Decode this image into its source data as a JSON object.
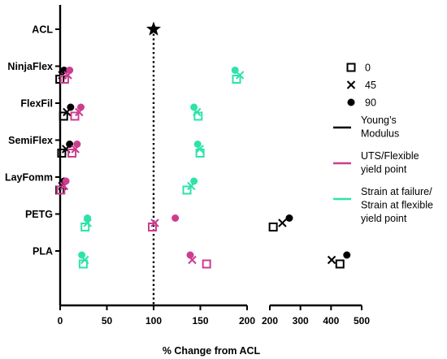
{
  "chart_data": {
    "type": "scatter",
    "title": "",
    "xlabel": "% Change from ACL",
    "ylabel": "",
    "categories": [
      "ACL",
      "NinjaFlex",
      "FlexFil",
      "SemiFlex",
      "LayFomm",
      "PETG",
      "PLA"
    ],
    "x_segments": [
      {
        "range": [
          0,
          200
        ],
        "ticks": [
          "0",
          "50",
          "100",
          "150",
          "200"
        ]
      },
      {
        "range": [
          200,
          500
        ],
        "ticks": [
          "200",
          "300",
          "400",
          "500"
        ]
      }
    ],
    "reference": {
      "name": "ACL",
      "x": 100,
      "marker": "star"
    },
    "legend": {
      "position": "right",
      "markers": [
        {
          "label": "0",
          "marker": "square"
        },
        {
          "label": "45",
          "marker": "x"
        },
        {
          "label": "90",
          "marker": "circle"
        }
      ],
      "properties": [
        {
          "label_lines": [
            "Young’s",
            "Modulus"
          ],
          "color": "#000000"
        },
        {
          "label_lines": [
            "UTS/Flexible",
            "yield point"
          ],
          "color": "#cc3d8f"
        },
        {
          "label_lines": [
            "Strain at failure/",
            "Strain at flexible",
            "yield point"
          ],
          "color": "#2ee3aa"
        }
      ]
    },
    "series": [
      {
        "property": 0,
        "marker": "square",
        "color": "#000000",
        "points": [
          [
            "NinjaFlex",
            1
          ],
          [
            "FlexFil",
            5
          ],
          [
            "SemiFlex",
            3
          ],
          [
            "LayFomm",
            1
          ],
          [
            "PETG",
            215
          ],
          [
            "PLA",
            433
          ]
        ]
      },
      {
        "property": 0,
        "marker": "x",
        "color": "#000000",
        "points": [
          [
            "NinjaFlex",
            1
          ],
          [
            "FlexFil",
            6
          ],
          [
            "SemiFlex",
            5
          ],
          [
            "LayFomm",
            1
          ],
          [
            "PETG",
            237
          ],
          [
            "PLA",
            398
          ]
        ]
      },
      {
        "property": 0,
        "marker": "circle",
        "color": "#000000",
        "points": [
          [
            "NinjaFlex",
            2
          ],
          [
            "FlexFil",
            9
          ],
          [
            "SemiFlex",
            8
          ],
          [
            "LayFomm",
            2
          ],
          [
            "PETG",
            257
          ],
          [
            "PLA",
            445
          ]
        ]
      },
      {
        "property": 1,
        "marker": "square",
        "color": "#cc3d8f",
        "points": [
          [
            "NinjaFlex",
            6
          ],
          [
            "FlexFil",
            17
          ],
          [
            "SemiFlex",
            14
          ],
          [
            "LayFomm",
            2
          ],
          [
            "PETG",
            100
          ],
          [
            "PLA",
            158
          ]
        ]
      },
      {
        "property": 1,
        "marker": "x",
        "color": "#cc3d8f",
        "points": [
          [
            "NinjaFlex",
            7
          ],
          [
            "FlexFil",
            19
          ],
          [
            "SemiFlex",
            15
          ],
          [
            "LayFomm",
            3
          ],
          [
            "PETG",
            100
          ],
          [
            "PLA",
            140
          ]
        ]
      },
      {
        "property": 1,
        "marker": "circle",
        "color": "#cc3d8f",
        "points": [
          [
            "NinjaFlex",
            8
          ],
          [
            "FlexFil",
            20
          ],
          [
            "SemiFlex",
            16
          ],
          [
            "LayFomm",
            4
          ],
          [
            "PETG",
            121
          ],
          [
            "PLA",
            137
          ]
        ]
      },
      {
        "property": 2,
        "marker": "square",
        "color": "#2ee3aa",
        "points": [
          [
            "NinjaFlex",
            190
          ],
          [
            "FlexFil",
            149
          ],
          [
            "SemiFlex",
            151
          ],
          [
            "LayFomm",
            137
          ],
          [
            "PETG",
            28
          ],
          [
            "PLA",
            26
          ]
        ]
      },
      {
        "property": 2,
        "marker": "x",
        "color": "#2ee3aa",
        "points": [
          [
            "NinjaFlex",
            191
          ],
          [
            "FlexFil",
            145
          ],
          [
            "SemiFlex",
            148
          ],
          [
            "LayFomm",
            139
          ],
          [
            "PETG",
            28
          ],
          [
            "PLA",
            25
          ]
        ]
      },
      {
        "property": 2,
        "marker": "circle",
        "color": "#2ee3aa",
        "points": [
          [
            "NinjaFlex",
            185
          ],
          [
            "FlexFil",
            141
          ],
          [
            "SemiFlex",
            145
          ],
          [
            "LayFomm",
            141
          ],
          [
            "PETG",
            27
          ],
          [
            "PLA",
            21
          ]
        ]
      }
    ]
  }
}
